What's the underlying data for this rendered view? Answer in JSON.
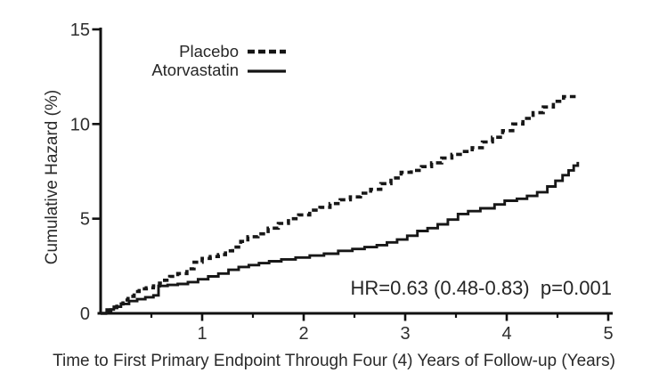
{
  "chart_data": {
    "type": "line",
    "subtype": "step-cumulative-hazard",
    "title": "",
    "xlabel": "Time to First Primary Endpoint Through Four (4) Years of Follow-up (Years)",
    "ylabel": "Cumulative Hazard (%)",
    "xlim": [
      0,
      5
    ],
    "ylim": [
      0,
      15
    ],
    "x_major_ticks": [
      1,
      2,
      3,
      4,
      5
    ],
    "x_minor_ticks": [
      0.5,
      1.5,
      2.5,
      3.5,
      4.5
    ],
    "y_major_ticks": [
      0,
      5,
      10,
      15
    ],
    "grid": false,
    "legend_position": "top-left-inside",
    "annotation": "HR=0.63 (0.48-0.83)  p=0.001",
    "line_color": "#171717",
    "series": [
      {
        "name": "Placebo",
        "style": "dashed",
        "points": [
          [
            0,
            0
          ],
          [
            0.05,
            0.15
          ],
          [
            0.1,
            0.3
          ],
          [
            0.16,
            0.5
          ],
          [
            0.22,
            0.7
          ],
          [
            0.27,
            0.9
          ],
          [
            0.33,
            1.15
          ],
          [
            0.38,
            1.3
          ],
          [
            0.45,
            1.35
          ],
          [
            0.52,
            1.45
          ],
          [
            0.58,
            1.6
          ],
          [
            0.63,
            1.75
          ],
          [
            0.68,
            1.95
          ],
          [
            0.76,
            2.1
          ],
          [
            0.85,
            2.35
          ],
          [
            0.92,
            2.7
          ],
          [
            1.0,
            2.9
          ],
          [
            1.08,
            3.0
          ],
          [
            1.16,
            3.1
          ],
          [
            1.23,
            3.3
          ],
          [
            1.3,
            3.5
          ],
          [
            1.38,
            3.8
          ],
          [
            1.45,
            4.05
          ],
          [
            1.55,
            4.2
          ],
          [
            1.65,
            4.5
          ],
          [
            1.75,
            4.75
          ],
          [
            1.85,
            5.0
          ],
          [
            1.95,
            5.2
          ],
          [
            2.06,
            5.45
          ],
          [
            2.16,
            5.6
          ],
          [
            2.26,
            5.8
          ],
          [
            2.36,
            6.0
          ],
          [
            2.46,
            6.15
          ],
          [
            2.56,
            6.35
          ],
          [
            2.66,
            6.55
          ],
          [
            2.76,
            6.85
          ],
          [
            2.86,
            7.15
          ],
          [
            2.96,
            7.45
          ],
          [
            3.06,
            7.55
          ],
          [
            3.16,
            7.75
          ],
          [
            3.26,
            7.95
          ],
          [
            3.36,
            8.2
          ],
          [
            3.46,
            8.4
          ],
          [
            3.56,
            8.55
          ],
          [
            3.66,
            8.75
          ],
          [
            3.76,
            9.05
          ],
          [
            3.86,
            9.3
          ],
          [
            3.96,
            9.65
          ],
          [
            4.06,
            10.0
          ],
          [
            4.16,
            10.3
          ],
          [
            4.26,
            10.6
          ],
          [
            4.36,
            10.9
          ],
          [
            4.46,
            11.2
          ],
          [
            4.56,
            11.45
          ],
          [
            4.68,
            11.55
          ]
        ]
      },
      {
        "name": "Atorvastatin",
        "style": "solid",
        "points": [
          [
            0,
            0
          ],
          [
            0.06,
            0.2
          ],
          [
            0.13,
            0.35
          ],
          [
            0.2,
            0.5
          ],
          [
            0.28,
            0.65
          ],
          [
            0.36,
            0.75
          ],
          [
            0.44,
            0.85
          ],
          [
            0.52,
            0.95
          ],
          [
            0.57,
            1.45
          ],
          [
            0.66,
            1.5
          ],
          [
            0.76,
            1.55
          ],
          [
            0.86,
            1.65
          ],
          [
            0.96,
            1.8
          ],
          [
            1.06,
            1.95
          ],
          [
            1.16,
            2.1
          ],
          [
            1.26,
            2.3
          ],
          [
            1.36,
            2.45
          ],
          [
            1.46,
            2.55
          ],
          [
            1.56,
            2.65
          ],
          [
            1.66,
            2.75
          ],
          [
            1.78,
            2.85
          ],
          [
            1.92,
            2.95
          ],
          [
            2.06,
            3.05
          ],
          [
            2.2,
            3.15
          ],
          [
            2.34,
            3.3
          ],
          [
            2.48,
            3.4
          ],
          [
            2.6,
            3.5
          ],
          [
            2.72,
            3.6
          ],
          [
            2.82,
            3.75
          ],
          [
            2.92,
            3.9
          ],
          [
            3.02,
            4.1
          ],
          [
            3.12,
            4.35
          ],
          [
            3.22,
            4.5
          ],
          [
            3.32,
            4.7
          ],
          [
            3.42,
            4.95
          ],
          [
            3.52,
            5.25
          ],
          [
            3.62,
            5.4
          ],
          [
            3.74,
            5.55
          ],
          [
            3.88,
            5.75
          ],
          [
            3.98,
            5.95
          ],
          [
            4.1,
            6.05
          ],
          [
            4.2,
            6.2
          ],
          [
            4.3,
            6.4
          ],
          [
            4.4,
            6.7
          ],
          [
            4.48,
            7.0
          ],
          [
            4.55,
            7.3
          ],
          [
            4.61,
            7.55
          ],
          [
            4.66,
            7.8
          ],
          [
            4.7,
            8.0
          ]
        ]
      }
    ]
  }
}
